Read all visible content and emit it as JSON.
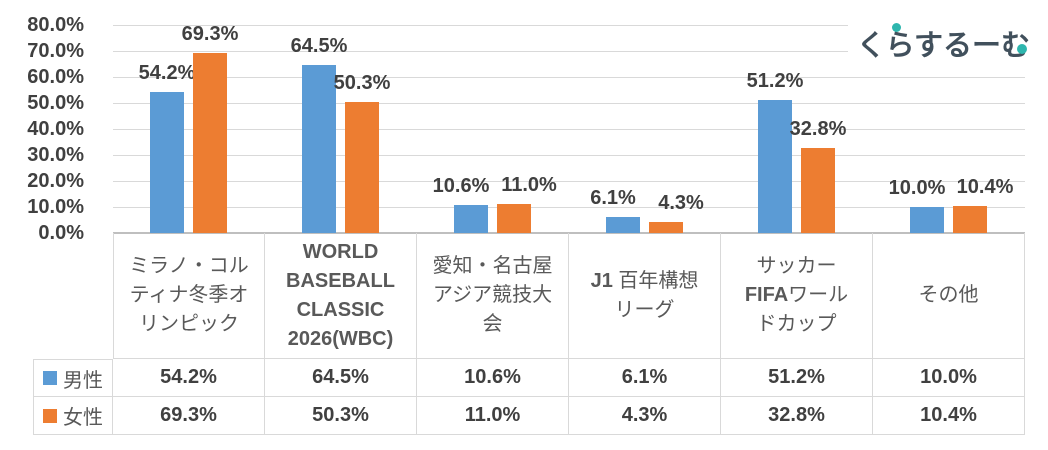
{
  "logo": {
    "text": "くらするーむ",
    "text_color": "#41505C",
    "accent_color": "#2EB6AE"
  },
  "colors": {
    "grid": "#D9D9D9",
    "axis_line": "#BFBFBF",
    "tick_text": "#404040",
    "value_label_text": "#404040",
    "category_text": "#595959",
    "table_border": "#D9D9D9",
    "male_bar": "#5B9BD5",
    "female_bar": "#ED7D31"
  },
  "chart_data": {
    "type": "bar",
    "title": "",
    "grid": true,
    "legend_position": "left-of-data-table",
    "value_label_format": "0.0%",
    "y_axis": {
      "min": 0,
      "max": 80,
      "step": 10,
      "unit": "%",
      "tick_labels": [
        "80.0%",
        "70.0%",
        "60.0%",
        "50.0%",
        "40.0%",
        "30.0%",
        "20.0%",
        "10.0%",
        "0.0%"
      ]
    },
    "categories": [
      {
        "id": "milano-cortina-winter-olympics",
        "label": "ミラノ・コルティナ冬季オリンピック",
        "lines": [
          [
            {
              "t": "ミラノ・コル",
              "b": false
            }
          ],
          [
            {
              "t": "ティナ冬季オ",
              "b": false
            }
          ],
          [
            {
              "t": "リンピック",
              "b": false
            }
          ]
        ]
      },
      {
        "id": "world-baseball-classic-2026",
        "label": "WORLD BASEBALL CLASSIC 2026(WBC)",
        "lines": [
          [
            {
              "t": "WORLD",
              "b": true
            }
          ],
          [
            {
              "t": "BASEBALL",
              "b": true
            }
          ],
          [
            {
              "t": "CLASSIC",
              "b": true
            }
          ],
          [
            {
              "t": "2026(WBC)",
              "b": true
            }
          ]
        ]
      },
      {
        "id": "aichi-nagoya-asian-games",
        "label": "愛知・名古屋アジア競技大会",
        "lines": [
          [
            {
              "t": "愛知・名古屋",
              "b": false
            }
          ],
          [
            {
              "t": "アジア競技大",
              "b": false
            }
          ],
          [
            {
              "t": "会",
              "b": false
            }
          ]
        ]
      },
      {
        "id": "j1-100-year-league",
        "label": "J1 百年構想リーグ",
        "lines": [
          [
            {
              "t": "J1 ",
              "b": true
            },
            {
              "t": "百年構想",
              "b": false
            }
          ],
          [
            {
              "t": "リーグ",
              "b": false
            }
          ]
        ]
      },
      {
        "id": "fifa-world-cup",
        "label": "サッカーFIFAワールドカップ",
        "lines": [
          [
            {
              "t": "サッカー",
              "b": false
            }
          ],
          [
            {
              "t": "FIFA",
              "b": true
            },
            {
              "t": "ワール",
              "b": false
            }
          ],
          [
            {
              "t": "ドカップ",
              "b": false
            }
          ]
        ]
      },
      {
        "id": "other",
        "label": "その他",
        "lines": [
          [
            {
              "t": "その他",
              "b": false
            }
          ]
        ]
      }
    ],
    "series": [
      {
        "id": "male",
        "name": "男性",
        "color": "#5B9BD5",
        "values": [
          54.2,
          64.5,
          10.6,
          6.1,
          51.2,
          10.0
        ]
      },
      {
        "id": "female",
        "name": "女性",
        "color": "#ED7D31",
        "values": [
          69.3,
          50.3,
          11.0,
          4.3,
          32.8,
          10.4
        ]
      }
    ]
  }
}
